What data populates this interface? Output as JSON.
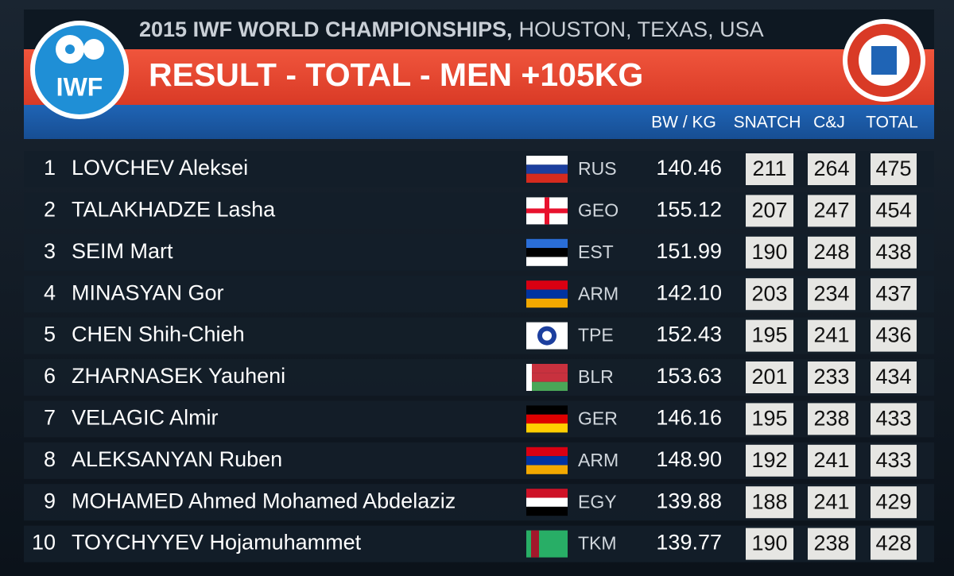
{
  "header": {
    "logo": "IWF",
    "event": "2015 IWF WORLD CHAMPIONSHIPS,",
    "location": "HOUSTON, TEXAS, USA",
    "title": "RESULT - TOTAL - MEN +105KG"
  },
  "table": {
    "columns": [
      "BW / KG",
      "SNATCH",
      "C&J",
      "TOTAL"
    ],
    "rows": [
      [
        1,
        "LOVCHEV Aleksei",
        "RUS",
        "140.46",
        211,
        264,
        475
      ],
      [
        2,
        "TALAKHADZE Lasha",
        "GEO",
        "155.12",
        207,
        247,
        454
      ],
      [
        3,
        "SEIM Mart",
        "EST",
        "151.99",
        190,
        248,
        438
      ],
      [
        4,
        "MINASYAN Gor",
        "ARM",
        "142.10",
        203,
        234,
        437
      ],
      [
        5,
        "CHEN Shih-Chieh",
        "TPE",
        "152.43",
        195,
        241,
        436
      ],
      [
        6,
        "ZHARNASEK Yauheni",
        "BLR",
        "153.63",
        201,
        233,
        434
      ],
      [
        7,
        "VELAGIC Almir",
        "GER",
        "146.16",
        195,
        238,
        433
      ],
      [
        8,
        "ALEKSANYAN Ruben",
        "ARM",
        "148.90",
        192,
        241,
        433
      ],
      [
        9,
        "MOHAMED Ahmed Mohamed Abdelaziz",
        "EGY",
        "139.88",
        188,
        241,
        429
      ],
      [
        10,
        "TOYCHYYEV Hojamuhammet",
        "TKM",
        "139.77",
        190,
        238,
        428
      ]
    ]
  }
}
